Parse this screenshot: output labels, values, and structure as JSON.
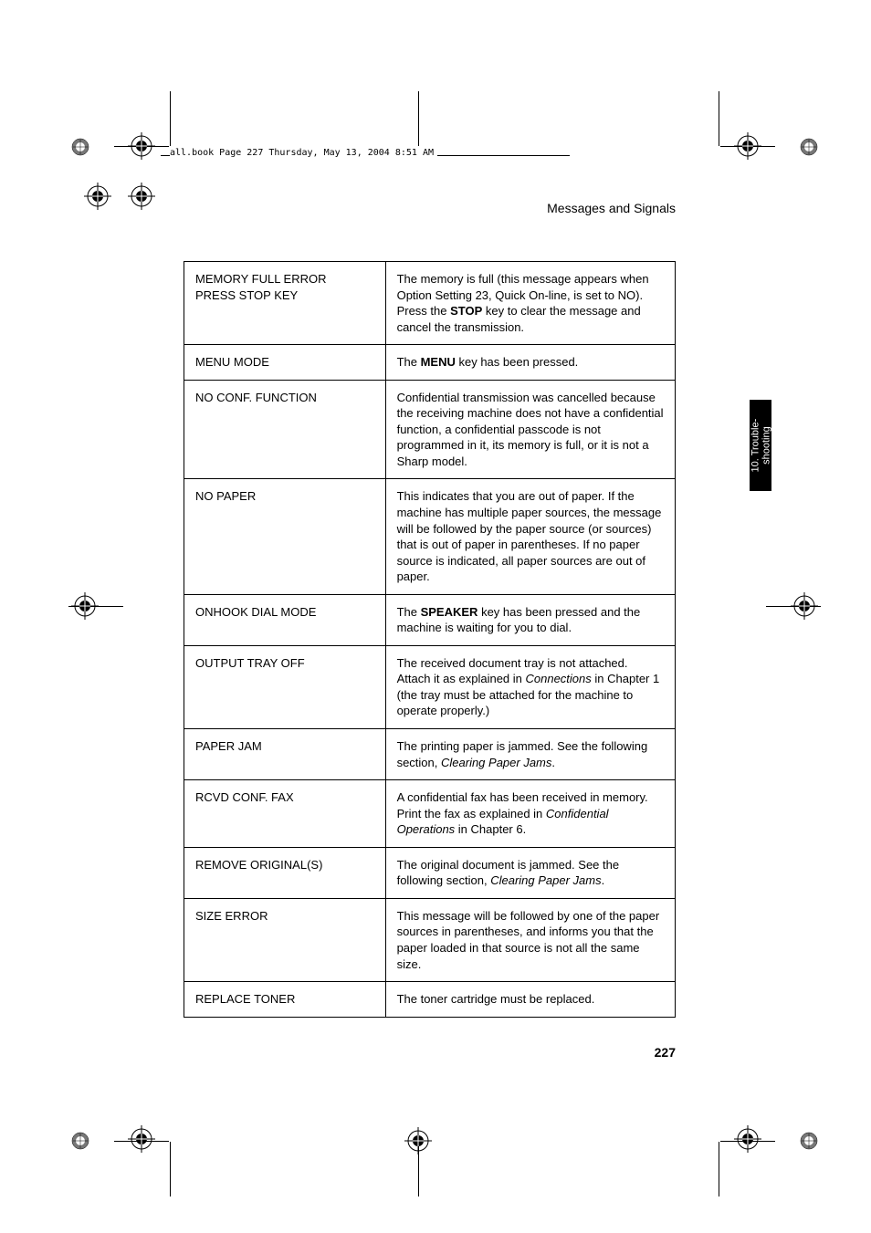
{
  "header": {
    "text": "all.book  Page 227  Thursday, May 13, 2004  8:51 AM"
  },
  "page": {
    "title": "Messages and Signals",
    "page_number": "227"
  },
  "side_tab": {
    "line1": "10. Trouble-",
    "line2": "shooting"
  },
  "rows": [
    {
      "label": "MEMORY FULL ERROR\nPRESS STOP KEY",
      "desc_parts": [
        {
          "t": "The memory is full (this message appears when Option Setting 23, Quick On-line, is set to NO). Press the "
        },
        {
          "t": "STOP",
          "bold": true
        },
        {
          "t": " key to clear the message and cancel the transmission."
        }
      ]
    },
    {
      "label": "MENU MODE",
      "desc_parts": [
        {
          "t": "The "
        },
        {
          "t": "MENU",
          "bold": true
        },
        {
          "t": " key has been pressed."
        }
      ]
    },
    {
      "label": "NO CONF. FUNCTION",
      "desc_parts": [
        {
          "t": "Confidential transmission was cancelled because the receiving machine does not have a confidential function, a confidential passcode is not programmed in it, its memory is full, or it is not a Sharp model."
        }
      ]
    },
    {
      "label": "NO PAPER",
      "desc_parts": [
        {
          "t": "This indicates that you are out of paper. If the machine has multiple paper sources, the message will be followed by the paper source (or sources) that is out of paper in parentheses. If no paper source is indicated, all paper sources are out of paper."
        }
      ]
    },
    {
      "label": "ONHOOK DIAL MODE",
      "desc_parts": [
        {
          "t": "The "
        },
        {
          "t": "SPEAKER",
          "bold": true
        },
        {
          "t": " key has been pressed and the machine is waiting for you to dial."
        }
      ]
    },
    {
      "label": "OUTPUT TRAY OFF",
      "desc_parts": [
        {
          "t": "The received document tray is not attached. Attach it as explained in "
        },
        {
          "t": "Connections",
          "italic": true
        },
        {
          "t": " in Chapter 1 (the tray must be attached for the machine to operate properly.)"
        }
      ]
    },
    {
      "label": "PAPER JAM",
      "desc_parts": [
        {
          "t": "The printing paper is jammed. See the following section, "
        },
        {
          "t": "Clearing Paper Jams",
          "italic": true
        },
        {
          "t": "."
        }
      ]
    },
    {
      "label": "RCVD CONF. FAX",
      "desc_parts": [
        {
          "t": "A confidential fax has been received in memory. Print the fax as explained in "
        },
        {
          "t": "Confidential Operations",
          "italic": true
        },
        {
          "t": " in Chapter 6."
        }
      ]
    },
    {
      "label": "REMOVE ORIGINAL(S)",
      "desc_parts": [
        {
          "t": "The original document is jammed. See the following section, "
        },
        {
          "t": "Clearing Paper Jams",
          "italic": true
        },
        {
          "t": "."
        }
      ]
    },
    {
      "label": "SIZE ERROR",
      "desc_parts": [
        {
          "t": "This message will be followed by one of the paper sources in parentheses, and informs you that the paper loaded in that source is not all the same size."
        }
      ]
    },
    {
      "label": "REPLACE TONER",
      "desc_parts": [
        {
          "t": "The toner cartridge must be replaced."
        }
      ]
    }
  ]
}
